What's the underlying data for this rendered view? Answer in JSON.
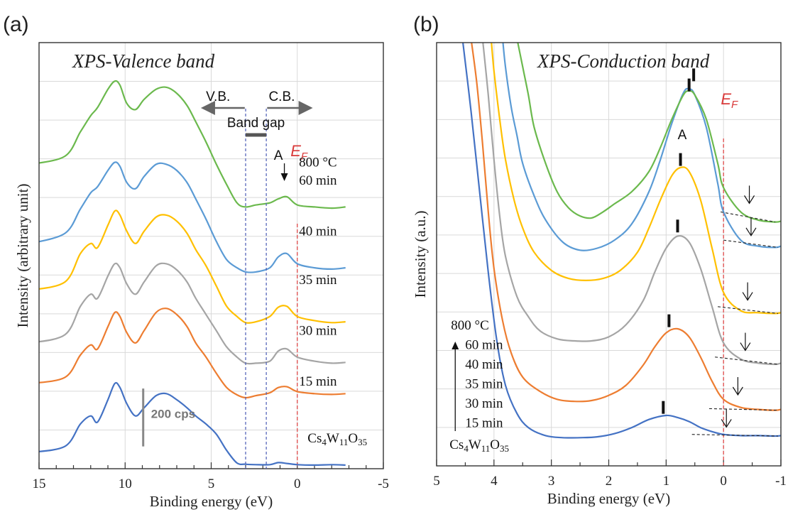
{
  "colors": {
    "green": "#6bb94d",
    "blue": "#5b9bd5",
    "yellow": "#ffc000",
    "gray": "#a5a5a5",
    "orange": "#ed7d31",
    "darkblue": "#4472c4",
    "ef_line": "#e04a4a",
    "gap_line": "#4a5bb5",
    "grid": "#d9d9d9",
    "arrow": "#666666"
  },
  "chart_data": [
    {
      "panel": "(a)",
      "type": "line",
      "title": "XPS-Valence band",
      "xlabel": "Binding energy (eV)",
      "ylabel": "Intensity (arbitrary unit)",
      "x_reversed": true,
      "xlim": [
        -5,
        15
      ],
      "ylim": [
        0,
        10.5
      ],
      "xticks": [
        "15",
        "10",
        "5",
        "0",
        "-5"
      ],
      "xtick_values": [
        15,
        10,
        5,
        0,
        -5
      ],
      "grid": "vertical and horizontal",
      "series": [
        {
          "name": "Cs4W11O35",
          "color_key": "darkblue",
          "x": [
            15.5,
            13.5,
            12.6,
            12.0,
            11.6,
            11.0,
            10.6,
            10.3,
            9.9,
            9.4,
            8.9,
            8.2,
            7.6,
            7.0,
            6.4,
            5.9,
            5.3,
            4.7,
            4.1,
            3.5,
            3.0,
            2.4,
            1.6,
            1.1,
            0.6,
            0.0,
            -1.0,
            -2.0,
            -2.8
          ],
          "y": [
            0.4,
            0.55,
            1.1,
            1.3,
            1.15,
            1.7,
            2.1,
            2.0,
            1.6,
            1.3,
            1.5,
            1.8,
            1.85,
            1.7,
            1.5,
            1.3,
            1.1,
            0.85,
            0.45,
            0.14,
            0.11,
            0.1,
            0.1,
            0.15,
            0.13,
            0.1,
            0.09,
            0.1,
            0.09
          ]
        },
        {
          "name": "15 min",
          "color_key": "orange",
          "x": [
            15.5,
            13.5,
            12.6,
            12.0,
            11.6,
            11.0,
            10.6,
            10.3,
            9.9,
            9.4,
            8.9,
            8.2,
            7.6,
            7.0,
            6.4,
            5.9,
            5.3,
            4.7,
            4.1,
            3.5,
            3.0,
            2.4,
            1.6,
            1.1,
            0.6,
            0.0,
            -1.0,
            -2.0,
            -2.8
          ],
          "y": [
            2.1,
            2.25,
            2.8,
            3.05,
            2.95,
            3.5,
            3.85,
            3.75,
            3.35,
            3.1,
            3.4,
            3.85,
            3.95,
            3.8,
            3.5,
            3.1,
            2.75,
            2.35,
            2.0,
            1.82,
            1.75,
            1.8,
            1.87,
            2.0,
            2.02,
            1.9,
            1.85,
            1.83,
            1.85
          ]
        },
        {
          "name": "30 min",
          "color_key": "gray",
          "x": [
            15.5,
            13.5,
            12.6,
            12.0,
            11.6,
            11.0,
            10.6,
            10.3,
            9.9,
            9.4,
            8.9,
            8.2,
            7.6,
            7.0,
            6.4,
            5.9,
            5.3,
            4.7,
            4.1,
            3.5,
            3.0,
            2.4,
            1.6,
            1.1,
            0.6,
            0.0,
            -1.0,
            -2.0,
            -2.8
          ],
          "y": [
            3.1,
            3.3,
            4.0,
            4.3,
            4.2,
            4.75,
            5.05,
            4.95,
            4.55,
            4.3,
            4.6,
            5.0,
            5.05,
            4.9,
            4.6,
            4.2,
            3.8,
            3.4,
            3.0,
            2.75,
            2.6,
            2.6,
            2.65,
            2.9,
            2.95,
            2.75,
            2.65,
            2.6,
            2.62
          ]
        },
        {
          "name": "35 min",
          "color_key": "yellow",
          "x": [
            15.5,
            13.5,
            12.6,
            12.0,
            11.6,
            11.0,
            10.6,
            10.3,
            9.9,
            9.4,
            8.9,
            8.2,
            7.6,
            7.0,
            6.4,
            5.9,
            5.3,
            4.7,
            4.1,
            3.5,
            3.0,
            2.4,
            1.6,
            1.1,
            0.6,
            0.0,
            -1.0,
            -2.0,
            -2.8
          ],
          "y": [
            4.4,
            4.6,
            5.3,
            5.55,
            5.45,
            6.0,
            6.35,
            6.25,
            5.85,
            5.55,
            5.85,
            6.2,
            6.25,
            6.1,
            5.8,
            5.4,
            5.0,
            4.5,
            4.0,
            3.75,
            3.6,
            3.62,
            3.75,
            3.98,
            4.0,
            3.75,
            3.65,
            3.6,
            3.62
          ]
        },
        {
          "name": "40 min",
          "color_key": "blue",
          "x": [
            15.5,
            13.5,
            12.6,
            12.0,
            11.6,
            11.0,
            10.6,
            10.3,
            9.9,
            9.4,
            8.9,
            8.2,
            7.6,
            7.0,
            6.4,
            5.9,
            5.3,
            4.7,
            4.1,
            3.5,
            3.0,
            2.4,
            1.6,
            1.1,
            0.6,
            0.0,
            -1.0,
            -2.0,
            -2.8
          ],
          "y": [
            5.55,
            5.8,
            6.4,
            6.8,
            6.95,
            7.35,
            7.55,
            7.45,
            7.05,
            6.9,
            7.2,
            7.5,
            7.5,
            7.35,
            7.05,
            6.65,
            6.15,
            5.6,
            5.15,
            4.95,
            4.85,
            4.85,
            4.95,
            5.22,
            5.3,
            5.05,
            4.95,
            4.92,
            4.95
          ]
        },
        {
          "name": "800 °C 60 min",
          "color_key": "green",
          "x": [
            15.5,
            13.5,
            12.6,
            12.0,
            11.6,
            11.0,
            10.6,
            10.3,
            9.9,
            9.4,
            8.9,
            8.2,
            7.6,
            7.0,
            6.4,
            5.9,
            5.3,
            4.7,
            4.1,
            3.5,
            3.0,
            2.4,
            1.6,
            1.1,
            0.6,
            0.0,
            -1.0,
            -2.0,
            -2.8
          ],
          "y": [
            7.5,
            7.7,
            8.3,
            8.7,
            8.9,
            9.35,
            9.55,
            9.45,
            9.0,
            8.85,
            9.1,
            9.35,
            9.4,
            9.25,
            8.95,
            8.55,
            8.05,
            7.5,
            7.0,
            6.55,
            6.45,
            6.5,
            6.55,
            6.65,
            6.7,
            6.5,
            6.45,
            6.42,
            6.45
          ]
        }
      ],
      "curve_labels": [
        {
          "text": "800 °C",
          "x": -1.2,
          "y": 7.45
        },
        {
          "text": "60 min",
          "x": -1.2,
          "y": 7.0
        },
        {
          "text": "40 min",
          "x": -1.2,
          "y": 5.75
        },
        {
          "text": "35 min",
          "x": -1.2,
          "y": 4.55
        },
        {
          "text": "30 min",
          "x": -1.2,
          "y": 3.3
        },
        {
          "text": "15 min",
          "x": -1.2,
          "y": 2.05
        }
      ],
      "compound_label": {
        "text": "Cs4W11O35",
        "base": "Cs",
        "sub1": "4",
        "mid": "W",
        "sub2": "11",
        "mid2": "O",
        "sub3": "35",
        "x": -0.6,
        "y": 0.65
      },
      "annotations": {
        "vb": "V.B.",
        "cb": "C.B.",
        "band_gap": "Band gap",
        "peak_a": "A",
        "ef_main": "E",
        "ef_sub": "F",
        "scale_bar": "200 cps",
        "scale_bar_height": 0.95
      },
      "ef_x": 0,
      "gap_edges": [
        3.0,
        1.8
      ]
    },
    {
      "panel": "(b)",
      "type": "line",
      "title": "XPS-Conduction band",
      "xlabel": "Binding energy (eV)",
      "ylabel": "Intensity (a.u.)",
      "x_reversed": true,
      "xlim": [
        -1,
        5
      ],
      "ylim": [
        0,
        10.5
      ],
      "xticks": [
        "5",
        "4",
        "3",
        "2",
        "1",
        "0",
        "-1"
      ],
      "xtick_values": [
        5,
        4,
        3,
        2,
        1,
        0,
        -1
      ],
      "grid": "vertical and horizontal",
      "series": [
        {
          "name": "Cs4W11O35",
          "color_key": "darkblue",
          "x": [
            4.55,
            4.4,
            4.25,
            4.1,
            3.95,
            3.8,
            3.6,
            3.4,
            3.1,
            2.8,
            2.5,
            2.2,
            1.9,
            1.6,
            1.3,
            1.0,
            0.8,
            0.6,
            0.4,
            0.2,
            0.0,
            -0.3,
            -0.6,
            -0.9,
            -1.0
          ],
          "y": [
            10.6,
            8.8,
            6.8,
            4.8,
            3.1,
            2.0,
            1.3,
            0.95,
            0.75,
            0.7,
            0.7,
            0.72,
            0.8,
            0.95,
            1.15,
            1.25,
            1.2,
            1.1,
            0.95,
            0.85,
            0.78,
            0.75,
            0.75,
            0.74,
            0.75
          ]
        },
        {
          "name": "15 min",
          "color_key": "orange",
          "x": [
            4.4,
            4.3,
            4.2,
            4.1,
            4.0,
            3.85,
            3.7,
            3.5,
            3.2,
            2.9,
            2.6,
            2.3,
            2.0,
            1.7,
            1.4,
            1.2,
            1.0,
            0.8,
            0.6,
            0.4,
            0.2,
            0.0,
            -0.3,
            -0.6,
            -0.9,
            -1.0
          ],
          "y": [
            10.6,
            9.5,
            8.0,
            6.3,
            4.9,
            3.6,
            2.8,
            2.2,
            1.85,
            1.65,
            1.6,
            1.62,
            1.75,
            2.0,
            2.5,
            2.95,
            3.3,
            3.4,
            3.2,
            2.7,
            2.1,
            1.65,
            1.45,
            1.4,
            1.38,
            1.4
          ]
        },
        {
          "name": "30 min",
          "color_key": "gray",
          "x": [
            4.2,
            4.1,
            4.0,
            3.9,
            3.8,
            3.6,
            3.4,
            3.2,
            2.9,
            2.6,
            2.3,
            2.0,
            1.7,
            1.4,
            1.2,
            1.0,
            0.8,
            0.6,
            0.4,
            0.2,
            0.0,
            -0.3,
            -0.6,
            -0.9,
            -1.0
          ],
          "y": [
            10.6,
            9.2,
            7.6,
            6.2,
            5.2,
            4.2,
            3.7,
            3.35,
            3.15,
            3.1,
            3.1,
            3.2,
            3.5,
            4.1,
            4.8,
            5.4,
            5.7,
            5.55,
            4.9,
            3.95,
            3.05,
            2.65,
            2.55,
            2.52,
            2.55
          ]
        },
        {
          "name": "35 min",
          "color_key": "yellow",
          "x": [
            4.05,
            4.0,
            3.9,
            3.8,
            3.65,
            3.5,
            3.3,
            3.0,
            2.7,
            2.4,
            2.1,
            1.8,
            1.5,
            1.3,
            1.1,
            0.9,
            0.75,
            0.6,
            0.4,
            0.2,
            0.0,
            -0.3,
            -0.6,
            -0.9,
            -1.0
          ],
          "y": [
            10.6,
            9.8,
            8.6,
            7.6,
            6.6,
            5.9,
            5.3,
            4.85,
            4.65,
            4.6,
            4.65,
            4.85,
            5.3,
            5.9,
            6.6,
            7.2,
            7.4,
            7.3,
            6.6,
            5.4,
            4.3,
            3.85,
            3.8,
            3.78,
            3.8
          ]
        },
        {
          "name": "40 min",
          "color_key": "blue",
          "x": [
            3.85,
            3.8,
            3.7,
            3.6,
            3.5,
            3.3,
            3.1,
            2.8,
            2.5,
            2.2,
            1.9,
            1.6,
            1.3,
            1.1,
            0.9,
            0.7,
            0.6,
            0.5,
            0.3,
            0.1,
            0.0,
            -0.3,
            -0.6,
            -0.9,
            -1.0
          ],
          "y": [
            10.6,
            9.9,
            8.9,
            8.2,
            7.5,
            6.7,
            6.1,
            5.55,
            5.35,
            5.4,
            5.6,
            6.0,
            6.8,
            7.6,
            8.5,
            9.25,
            9.35,
            9.2,
            8.4,
            7.0,
            6.3,
            5.6,
            5.45,
            5.42,
            5.45
          ]
        },
        {
          "name": "800 °C 60 min",
          "color_key": "green",
          "x": [
            3.6,
            3.5,
            3.4,
            3.3,
            3.1,
            2.9,
            2.7,
            2.5,
            2.3,
            2.1,
            1.9,
            1.6,
            1.3,
            1.1,
            0.9,
            0.7,
            0.6,
            0.5,
            0.3,
            0.1,
            0.0,
            -0.3,
            -0.6,
            -0.9,
            -1.0
          ],
          "y": [
            10.6,
            9.9,
            9.2,
            8.4,
            7.5,
            6.8,
            6.4,
            6.2,
            6.15,
            6.3,
            6.5,
            6.8,
            7.3,
            7.9,
            8.6,
            9.2,
            9.3,
            9.2,
            8.6,
            7.5,
            6.9,
            6.3,
            6.1,
            6.05,
            6.07
          ]
        }
      ],
      "peak_marks": [
        {
          "x": 0.52,
          "y": 9.7
        },
        {
          "x": 0.6,
          "y": 9.45
        },
        {
          "x": 0.75,
          "y": 7.6
        },
        {
          "x": 0.8,
          "y": 5.95
        },
        {
          "x": 0.95,
          "y": 3.6
        },
        {
          "x": 1.05,
          "y": 1.45
        }
      ],
      "edge_arrows": [
        {
          "x": -0.45,
          "y": 6.6,
          "x1": 0.05,
          "y1": 6.3,
          "x2": -0.9,
          "y2": 6.05
        },
        {
          "x": -0.48,
          "y": 5.8,
          "x1": 0.0,
          "y1": 5.6,
          "x2": -0.95,
          "y2": 5.42
        },
        {
          "x": -0.42,
          "y": 4.2,
          "x1": 0.1,
          "y1": 3.95,
          "x2": -0.95,
          "y2": 3.78
        },
        {
          "x": -0.38,
          "y": 2.95,
          "x1": 0.15,
          "y1": 2.7,
          "x2": -0.95,
          "y2": 2.52
        },
        {
          "x": -0.25,
          "y": 1.85,
          "x1": 0.25,
          "y1": 1.42,
          "x2": -0.95,
          "y2": 1.38
        },
        {
          "x": -0.05,
          "y": 1.05,
          "x1": 0.55,
          "y1": 0.78,
          "x2": -0.95,
          "y2": 0.74
        }
      ],
      "legend_lines": [
        {
          "text": "800 °C"
        },
        {
          "text": "60 min"
        },
        {
          "text": "40 min"
        },
        {
          "text": "35 min"
        },
        {
          "text": "30 min"
        },
        {
          "text": "15 min"
        }
      ],
      "compound_label": {
        "text": "Cs4W11O35",
        "base": "Cs",
        "sub1": "4",
        "mid": "W",
        "sub2": "11",
        "mid2": "O",
        "sub3": "35"
      },
      "annotations": {
        "peak_a": "A",
        "ef_main": "E",
        "ef_sub": "F"
      },
      "ef_x": 0
    }
  ]
}
